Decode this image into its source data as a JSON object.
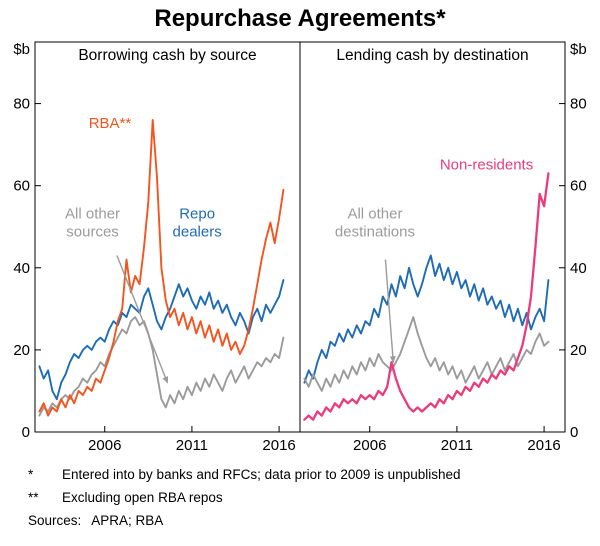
{
  "title": "Repurchase Agreements*",
  "y_axis_unit": "$b",
  "footnotes": [
    {
      "marker": "*",
      "text": "Entered into by banks and RFCs; data prior to 2009 is unpublished"
    },
    {
      "marker": "**",
      "text": "Excluding open RBA repos"
    }
  ],
  "sources": {
    "label": "Sources:",
    "value": "APRA; RBA"
  },
  "colors": {
    "blue": "#1f6cb4",
    "orange": "#f4541d",
    "gray": "#9b9b9b",
    "pink": "#ea3c7d",
    "axis": "#000000"
  },
  "chart_data": [
    {
      "type": "line",
      "subtitle": "Borrowing cash by source",
      "xlabel": "",
      "ylabel": "$b",
      "xlim": [
        2002,
        2017.2
      ],
      "ylim": [
        0,
        95
      ],
      "xticks": [
        2006,
        2011,
        2016
      ],
      "yticks": [
        0,
        20,
        40,
        60,
        80
      ],
      "x": [
        2002.25,
        2002.5,
        2002.75,
        2003,
        2003.25,
        2003.5,
        2003.75,
        2004,
        2004.25,
        2004.5,
        2004.75,
        2005,
        2005.25,
        2005.5,
        2005.75,
        2006,
        2006.25,
        2006.5,
        2006.75,
        2007,
        2007.25,
        2007.5,
        2007.75,
        2008,
        2008.25,
        2008.5,
        2008.75,
        2009,
        2009.25,
        2009.5,
        2009.75,
        2010,
        2010.25,
        2010.5,
        2010.75,
        2011,
        2011.25,
        2011.5,
        2011.75,
        2012,
        2012.25,
        2012.5,
        2012.75,
        2013,
        2013.25,
        2013.5,
        2013.75,
        2014,
        2014.25,
        2014.5,
        2014.75,
        2015,
        2015.25,
        2015.5,
        2015.75,
        2016,
        2016.25
      ],
      "series": [
        {
          "name": "Repo dealers",
          "slug": "repo-dealers",
          "color": "#1f6cb4",
          "values": [
            16,
            13,
            15,
            10,
            8,
            12,
            14,
            17,
            19,
            18,
            20,
            21,
            20,
            22,
            23,
            22,
            25,
            27,
            26,
            29,
            28,
            31,
            30,
            29,
            33,
            35,
            31,
            27,
            25,
            28,
            30,
            33,
            36,
            33,
            35,
            32,
            30,
            33,
            31,
            34,
            30,
            32,
            29,
            31,
            28,
            26,
            29,
            27,
            24,
            28,
            30,
            27,
            31,
            29,
            31,
            33,
            37
          ]
        },
        {
          "name": "All other sources",
          "slug": "all-other-sources",
          "color": "#9b9b9b",
          "values": [
            4,
            6,
            5,
            7,
            6,
            8,
            9,
            8,
            10,
            11,
            13,
            12,
            14,
            15,
            17,
            16,
            19,
            21,
            23,
            25,
            24,
            27,
            28,
            26,
            27,
            24,
            20,
            14,
            8,
            6,
            9,
            7,
            10,
            8,
            11,
            9,
            12,
            10,
            13,
            11,
            14,
            12,
            10,
            13,
            15,
            12,
            14,
            16,
            13,
            15,
            17,
            16,
            18,
            17,
            19,
            18,
            23
          ]
        },
        {
          "name": "RBA**",
          "slug": "rba",
          "color": "#f4541d",
          "values": [
            5,
            7,
            4,
            6,
            5,
            8,
            6,
            9,
            7,
            10,
            9,
            11,
            10,
            13,
            12,
            15,
            18,
            22,
            27,
            30,
            42,
            34,
            38,
            36,
            45,
            56,
            76,
            62,
            40,
            32,
            28,
            30,
            26,
            29,
            25,
            28,
            24,
            27,
            23,
            26,
            22,
            25,
            21,
            24,
            20,
            22,
            19,
            21,
            25,
            30,
            36,
            42,
            47,
            51,
            46,
            52,
            59
          ]
        }
      ],
      "annotations": [
        {
          "lines": [
            "RBA**"
          ],
          "x": 2006.3,
          "y": 74,
          "color": "#f4541d"
        },
        {
          "lines": [
            "All other",
            "sources"
          ],
          "x": 2005.3,
          "y": 52,
          "color": "#9b9b9b"
        },
        {
          "lines": [
            "Repo",
            "dealers"
          ],
          "x": 2011.3,
          "y": 52,
          "color": "#1f6cb4"
        }
      ],
      "arrows": [
        {
          "from": [
            2006.7,
            43
          ],
          "to": [
            2009.6,
            12
          ]
        }
      ]
    },
    {
      "type": "line",
      "subtitle": "Lending cash by destination",
      "xlabel": "",
      "ylabel": "$b",
      "xlim": [
        2002,
        2017.2
      ],
      "ylim": [
        0,
        95
      ],
      "xticks": [
        2006,
        2011,
        2016
      ],
      "yticks": [
        0,
        20,
        40,
        60,
        80
      ],
      "x": [
        2002.25,
        2002.5,
        2002.75,
        2003,
        2003.25,
        2003.5,
        2003.75,
        2004,
        2004.25,
        2004.5,
        2004.75,
        2005,
        2005.25,
        2005.5,
        2005.75,
        2006,
        2006.25,
        2006.5,
        2006.75,
        2007,
        2007.25,
        2007.5,
        2007.75,
        2008,
        2008.25,
        2008.5,
        2008.75,
        2009,
        2009.25,
        2009.5,
        2009.75,
        2010,
        2010.25,
        2010.5,
        2010.75,
        2011,
        2011.25,
        2011.5,
        2011.75,
        2012,
        2012.25,
        2012.5,
        2012.75,
        2013,
        2013.25,
        2013.5,
        2013.75,
        2014,
        2014.25,
        2014.5,
        2014.75,
        2015,
        2015.25,
        2015.5,
        2015.75,
        2016,
        2016.25
      ],
      "series": [
        {
          "name": "Repo dealers",
          "slug": "repo-dealers",
          "color": "#1f6cb4",
          "values": [
            12,
            15,
            13,
            17,
            20,
            18,
            22,
            21,
            24,
            22,
            25,
            23,
            26,
            24,
            27,
            26,
            30,
            28,
            33,
            31,
            36,
            33,
            38,
            35,
            40,
            36,
            33,
            36,
            40,
            43,
            38,
            41,
            37,
            40,
            36,
            39,
            35,
            37,
            33,
            36,
            32,
            35,
            31,
            33,
            30,
            32,
            28,
            31,
            27,
            30,
            26,
            29,
            25,
            28,
            30,
            27,
            37
          ]
        },
        {
          "name": "All other destinations",
          "slug": "all-other-destinations",
          "color": "#9b9b9b",
          "values": [
            13,
            11,
            14,
            12,
            10,
            13,
            11,
            14,
            12,
            15,
            13,
            16,
            14,
            17,
            15,
            18,
            16,
            19,
            17,
            16,
            15,
            17,
            19,
            22,
            25,
            28,
            24,
            21,
            18,
            16,
            18,
            15,
            17,
            14,
            16,
            13,
            15,
            12,
            14,
            16,
            13,
            15,
            17,
            14,
            16,
            18,
            15,
            17,
            19,
            16,
            18,
            20,
            19,
            22,
            24,
            21,
            22
          ]
        },
        {
          "name": "Non-residents",
          "slug": "non-residents",
          "color": "#ea3c7d",
          "width": 2.3,
          "values": [
            3,
            4,
            3,
            5,
            4,
            6,
            5,
            7,
            6,
            8,
            7,
            8,
            7,
            9,
            8,
            9,
            8,
            10,
            9,
            11,
            17,
            13,
            10,
            8,
            6,
            5,
            6,
            5,
            6,
            7,
            6,
            8,
            7,
            9,
            8,
            10,
            9,
            11,
            10,
            12,
            11,
            13,
            12,
            14,
            13,
            15,
            14,
            16,
            15,
            18,
            21,
            26,
            33,
            45,
            58,
            55,
            63
          ]
        }
      ],
      "annotations": [
        {
          "lines": [
            "Non-residents"
          ],
          "x": 2012.7,
          "y": 64,
          "color": "#ea3c7d"
        },
        {
          "lines": [
            "All other",
            "destinations"
          ],
          "x": 2006.3,
          "y": 52,
          "color": "#9b9b9b"
        }
      ],
      "arrows": [
        {
          "from": [
            2006.9,
            42
          ],
          "to": [
            2007.35,
            17
          ]
        }
      ]
    }
  ]
}
